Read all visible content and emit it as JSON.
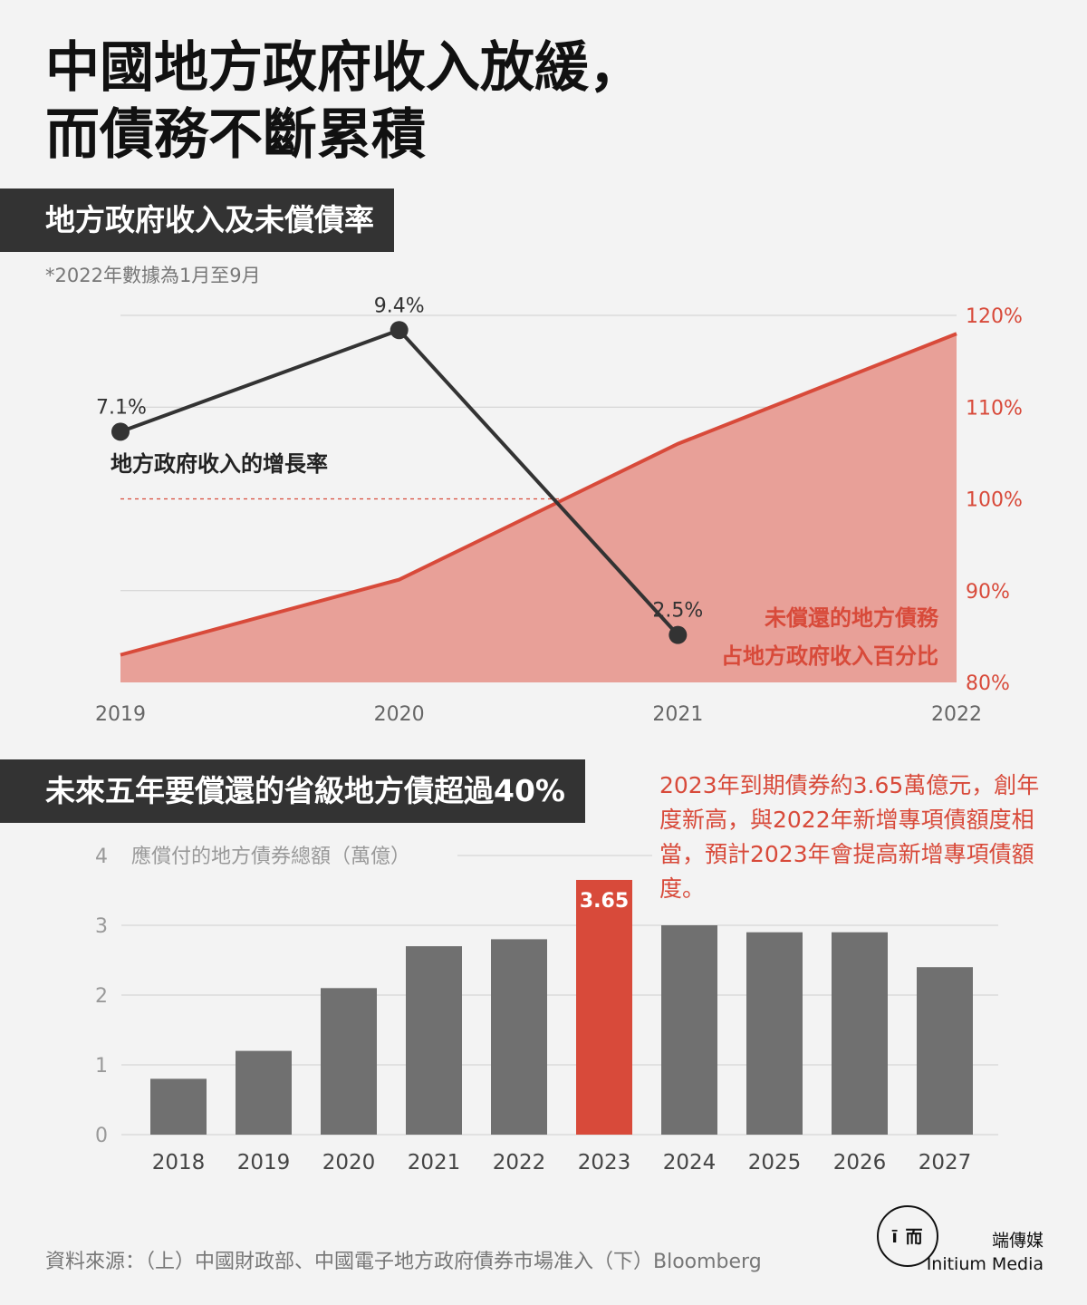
{
  "title": {
    "line1": "中國地方政府收入放緩，",
    "line2": "而債務不斷累積"
  },
  "section1": {
    "label": "地方政府收入及未償債率",
    "note": "*2022年數據為1月至9月"
  },
  "section2": {
    "label": "未來五年要償還的省級地方債超過40%"
  },
  "annotation": "2023年到期債券約3.65萬億元，創年度新高，與2022年新增專項債額度相當，預計2023年會提高新增專項債額度。",
  "source": "資料來源：（上）中國財政部、中國電子地方政府債券市場准入（下）Bloomberg",
  "brand": {
    "logo_glyph": "ī 而",
    "name_cn": "端傳媒",
    "name_en": "Initium Media"
  },
  "colors": {
    "accent": "#d84a3a",
    "area_fill": "#e8a098",
    "dark_line": "#333333",
    "bar": "#707070",
    "grid": "#cfcfcf"
  },
  "chart_data": [
    {
      "type": "line",
      "x": [
        "2019",
        "2020",
        "2021",
        "2022"
      ],
      "y_right_ticks": [
        "80%",
        "90%",
        "100%",
        "110%",
        "120%"
      ],
      "y_right_range": [
        80,
        120
      ],
      "series": [
        {
          "name": "地方政府收入的增長率",
          "kind": "line",
          "x": [
            "2019",
            "2020",
            "2021"
          ],
          "values": [
            7.1,
            9.4,
            2.5
          ],
          "labels": [
            "7.1%",
            "9.4%",
            "2.5%"
          ],
          "color": "#333333"
        },
        {
          "name": "未償還的地方債務占地方政府收入百分比",
          "name_lines": [
            "未償還的地方債務",
            "占地方政府收入百分比"
          ],
          "kind": "area",
          "x": [
            "2019",
            "2020",
            "2021",
            "2022"
          ],
          "values": [
            83,
            91.2,
            106,
            118
          ],
          "axis": "right",
          "color": "#d84a3a"
        }
      ],
      "reference_line": 100
    },
    {
      "type": "bar",
      "ylabel": "應償付的地方債券總額（萬億）",
      "ylim": [
        0,
        4
      ],
      "y_ticks": [
        "0",
        "1",
        "2",
        "3",
        "4"
      ],
      "categories": [
        "2018",
        "2019",
        "2020",
        "2021",
        "2022",
        "2023",
        "2024",
        "2025",
        "2026",
        "2027"
      ],
      "values": [
        0.8,
        1.2,
        2.1,
        2.7,
        2.8,
        3.65,
        3.0,
        2.9,
        2.9,
        2.4
      ],
      "highlight": {
        "category": "2023",
        "label": "3.65"
      }
    }
  ]
}
